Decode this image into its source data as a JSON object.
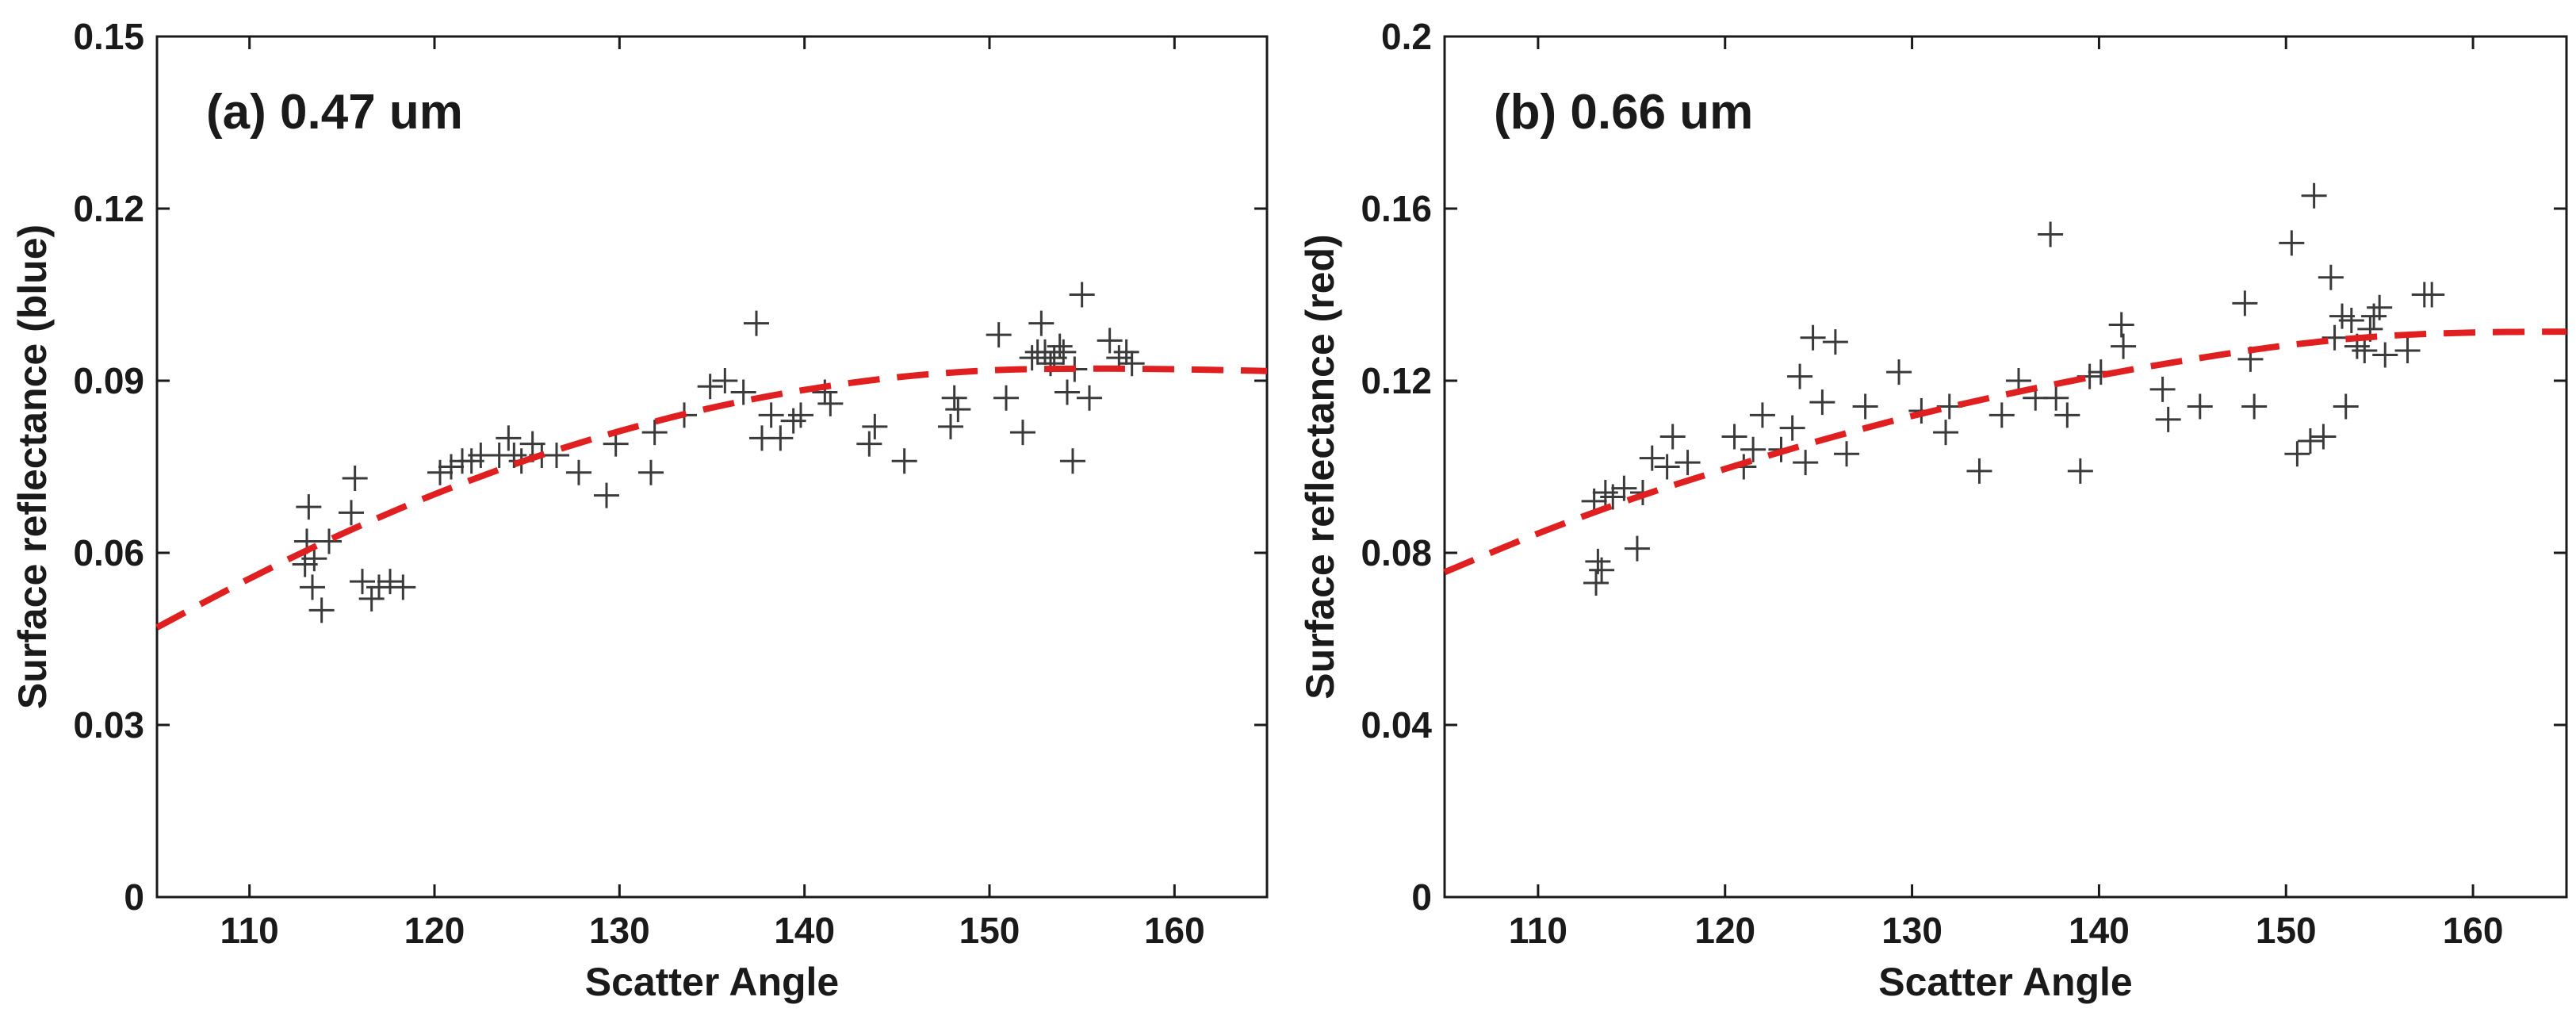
{
  "chart_data": [
    {
      "type": "scatter",
      "panel_label": "(a) 0.47 um",
      "xlabel": "Scatter Angle",
      "ylabel": "Surface reflectance (blue)",
      "xlim": [
        105,
        165
      ],
      "ylim": [
        0,
        0.15
      ],
      "xticks": [
        "110",
        "120",
        "130",
        "140",
        "150",
        "160"
      ],
      "yticks": [
        "0",
        "0.03",
        "0.06",
        "0.09",
        "0.12",
        "0.15"
      ],
      "grid": false,
      "marker": "+",
      "fit_color": "#e02020",
      "fit_curve": {
        "x": [
          105,
          110,
          115,
          120,
          125,
          130,
          135,
          140,
          145,
          150,
          155,
          160,
          165
        ],
        "y": [
          0.047,
          0.0555,
          0.0633,
          0.0702,
          0.0762,
          0.0812,
          0.0853,
          0.0884,
          0.0906,
          0.0918,
          0.0921,
          0.092,
          0.0917
        ]
      },
      "x": [
        113.0,
        113.2,
        113.1,
        113.4,
        113.5,
        113.9,
        114.3,
        115.5,
        115.7,
        116.1,
        116.6,
        117.0,
        117.6,
        118.3,
        120.3,
        120.9,
        121.5,
        122.0,
        122.5,
        123.5,
        124.0,
        124.3,
        124.7,
        125.3,
        125.8,
        126.6,
        127.8,
        129.3,
        129.8,
        131.7,
        131.9,
        133.5,
        134.9,
        135.7,
        136.7,
        137.4,
        137.7,
        138.2,
        138.7,
        139.4,
        139.8,
        141.1,
        141.4,
        143.5,
        143.8,
        145.4,
        147.9,
        148.1,
        148.3,
        150.5,
        150.9,
        151.8,
        152.3,
        152.6,
        152.8,
        153.0,
        153.3,
        153.5,
        153.8,
        154.0,
        154.2,
        154.5,
        154.6,
        155.0,
        155.4,
        156.5,
        157.0,
        157.4,
        157.7
      ],
      "y": [
        0.058,
        0.068,
        0.062,
        0.054,
        0.059,
        0.05,
        0.062,
        0.067,
        0.073,
        0.055,
        0.052,
        0.054,
        0.055,
        0.054,
        0.074,
        0.075,
        0.076,
        0.076,
        0.077,
        0.077,
        0.08,
        0.077,
        0.076,
        0.079,
        0.077,
        0.077,
        0.074,
        0.07,
        0.079,
        0.074,
        0.081,
        0.084,
        0.089,
        0.09,
        0.088,
        0.1,
        0.08,
        0.084,
        0.08,
        0.083,
        0.084,
        0.088,
        0.086,
        0.079,
        0.082,
        0.076,
        0.082,
        0.087,
        0.085,
        0.098,
        0.087,
        0.081,
        0.094,
        0.095,
        0.1,
        0.095,
        0.093,
        0.094,
        0.096,
        0.095,
        0.088,
        0.076,
        0.092,
        0.105,
        0.087,
        0.097,
        0.094,
        0.095,
        0.093
      ]
    },
    {
      "type": "scatter",
      "panel_label": "(b) 0.66 um",
      "xlabel": "Scatter Angle",
      "ylabel": "Surface reflectance (red)",
      "xlim": [
        105,
        165
      ],
      "ylim": [
        0,
        0.2
      ],
      "xticks": [
        "110",
        "120",
        "130",
        "140",
        "150",
        "160"
      ],
      "yticks": [
        "0",
        "0.04",
        "0.08",
        "0.12",
        "0.16",
        "0.2"
      ],
      "grid": false,
      "marker": "+",
      "fit_color": "#e02020",
      "fit_curve": {
        "x": [
          105,
          110,
          115,
          120,
          125,
          130,
          135,
          140,
          145,
          150,
          155,
          160,
          165
        ],
        "y": [
          0.0755,
          0.0845,
          0.0925,
          0.0995,
          0.106,
          0.1118,
          0.1168,
          0.1212,
          0.125,
          0.1282,
          0.1303,
          0.1312,
          0.1314
        ]
      },
      "x": [
        113.0,
        113.2,
        113.1,
        113.4,
        113.6,
        114.0,
        114.6,
        115.3,
        115.6,
        116.1,
        116.9,
        117.2,
        118.0,
        120.5,
        121.0,
        121.5,
        122.0,
        123.0,
        123.6,
        124.0,
        124.3,
        124.7,
        125.2,
        125.9,
        126.5,
        127.5,
        129.3,
        130.5,
        131.8,
        132.0,
        133.6,
        134.8,
        135.7,
        136.6,
        137.4,
        137.7,
        138.3,
        139.0,
        139.5,
        140.1,
        141.2,
        141.3,
        143.4,
        143.7,
        145.4,
        147.8,
        148.1,
        148.3,
        150.3,
        150.6,
        151.3,
        151.5,
        152.0,
        152.4,
        152.6,
        153.0,
        153.2,
        153.5,
        153.8,
        154.2,
        154.5,
        154.7,
        155.0,
        155.3,
        156.5,
        157.4,
        157.8
      ],
      "y": [
        0.092,
        0.078,
        0.073,
        0.076,
        0.094,
        0.093,
        0.095,
        0.081,
        0.094,
        0.102,
        0.1,
        0.107,
        0.101,
        0.107,
        0.1,
        0.104,
        0.112,
        0.104,
        0.109,
        0.121,
        0.101,
        0.13,
        0.115,
        0.129,
        0.103,
        0.114,
        0.122,
        0.113,
        0.108,
        0.114,
        0.099,
        0.112,
        0.12,
        0.116,
        0.154,
        0.116,
        0.112,
        0.099,
        0.121,
        0.122,
        0.133,
        0.128,
        0.118,
        0.111,
        0.114,
        0.138,
        0.125,
        0.114,
        0.152,
        0.103,
        0.106,
        0.163,
        0.107,
        0.144,
        0.13,
        0.135,
        0.114,
        0.134,
        0.128,
        0.127,
        0.132,
        0.135,
        0.137,
        0.126,
        0.127,
        0.14,
        0.14
      ]
    }
  ]
}
